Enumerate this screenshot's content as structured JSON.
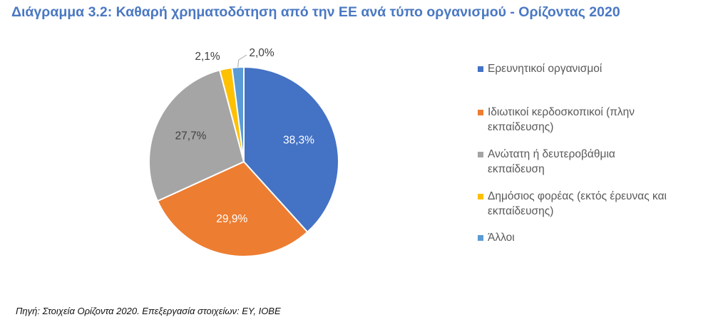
{
  "title": "Διάγραμμα 3.2: Καθαρή χρηματοδότηση από την ΕΕ ανά τύπο οργανισμού - Ορίζοντας 2020",
  "source": "Πηγή: Στοιχεία Ορίζοντα 2020. Επεξεργασία στοιχείων: EY, IOBE",
  "chart_data": {
    "type": "pie",
    "title": "Διάγραμμα 3.2: Καθαρή χρηματοδότηση από την ΕΕ ανά τύπο οργανισμού - Ορίζοντας 2020",
    "categories": [
      "Ερευνητικοί οργανισμοί",
      "Ιδιωτικοί κερδοσκοπικοί (πλην εκπαίδευσης)",
      "Ανώτατη ή δευτεροβάθμια εκπαίδευση",
      "Δημόσιος φορέας (εκτός έρευνας και εκπαίδευσης)",
      "Άλλοι"
    ],
    "values": [
      38.3,
      29.9,
      27.7,
      2.1,
      2.0
    ],
    "labels": [
      "38,3%",
      "29,9%",
      "27,7%",
      "2,1%",
      "2,0%"
    ],
    "colors": [
      "#4472c4",
      "#ed7d31",
      "#a5a5a5",
      "#ffc000",
      "#5b9bd5"
    ],
    "legend_position": "right"
  },
  "legend": [
    "Ερευνητικοί οργανισμοί",
    "Ιδιωτικοί κερδοσκοπικοί (πλην εκπαίδευσης)",
    "Ανώτατη ή δευτεροβάθμια εκπαίδευση",
    "Δημόσιος φορέας (εκτός έρευνας και εκπαίδευσης)",
    "Άλλοι"
  ]
}
